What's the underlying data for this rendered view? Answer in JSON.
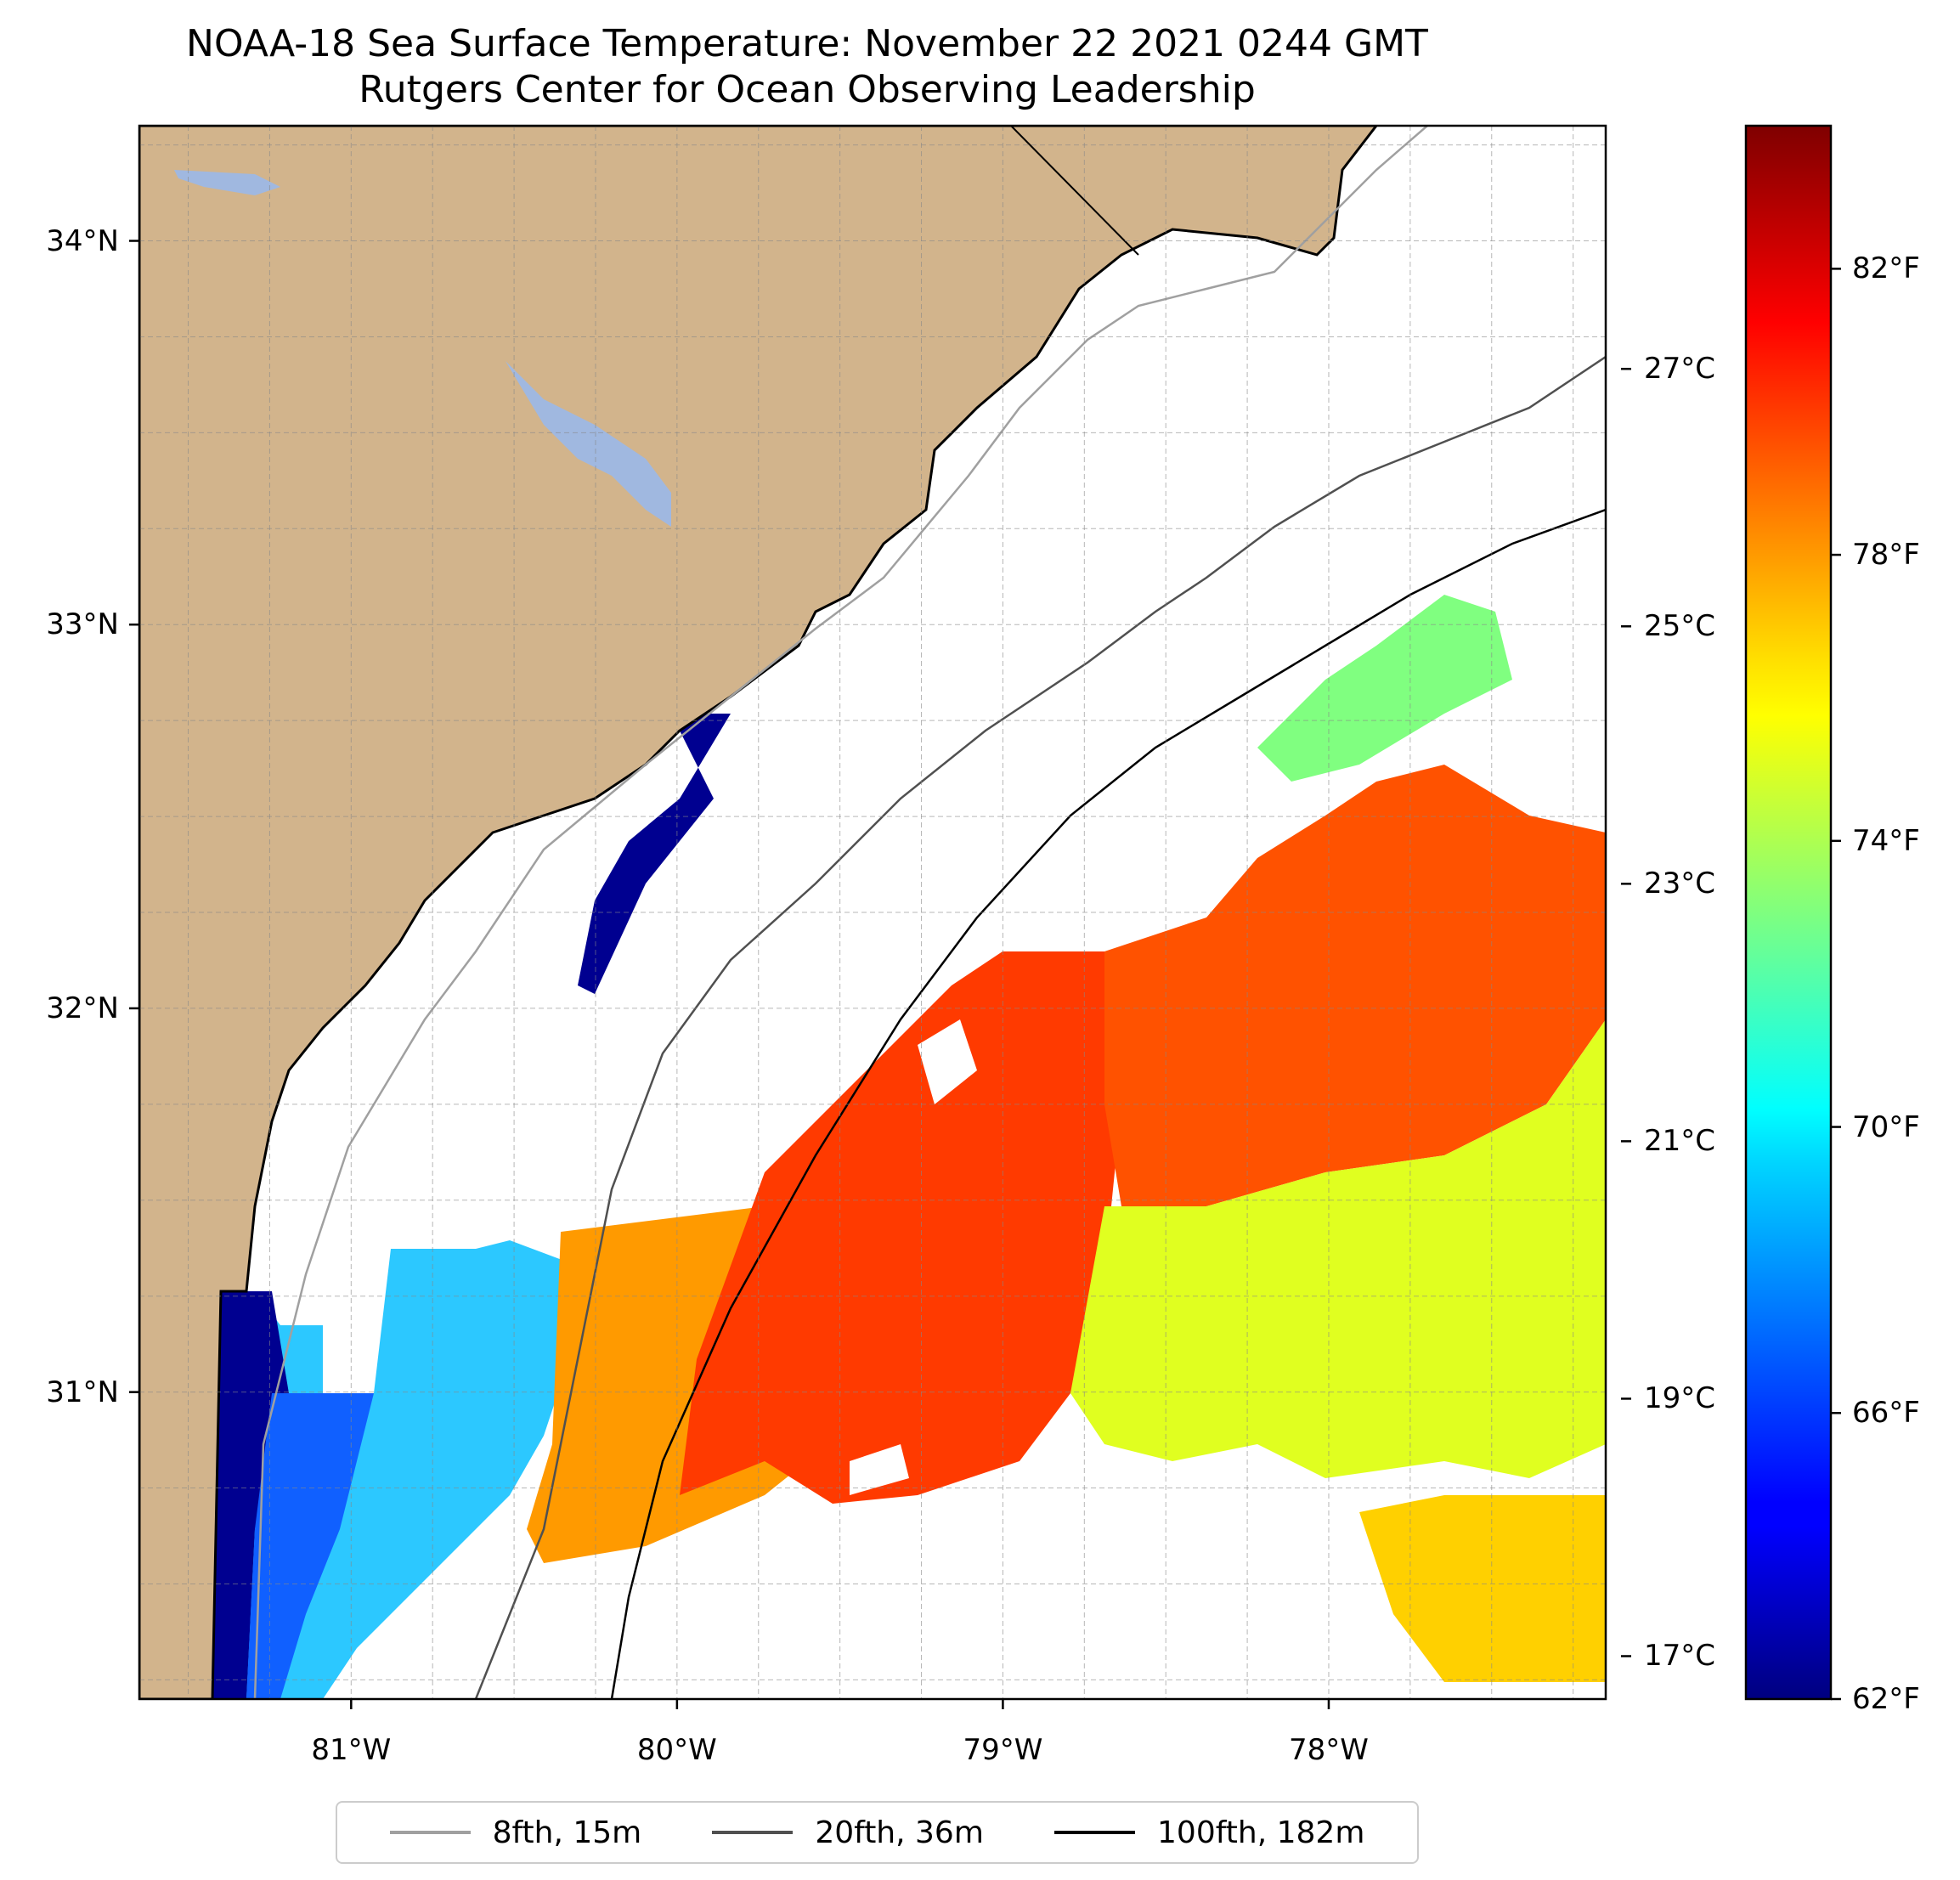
{
  "title": {
    "line1": "NOAA-18 Sea Surface Temperature: November 22 2021 0244 GMT",
    "line2": "Rutgers Center for Ocean Observing Leadership"
  },
  "map": {
    "lat_range": [
      30.2,
      34.3
    ],
    "lon_range": [
      -81.65,
      -77.15
    ],
    "lat_ticks": [
      {
        "value": 34,
        "label": "34°N"
      },
      {
        "value": 33,
        "label": "33°N"
      },
      {
        "value": 32,
        "label": "32°N"
      },
      {
        "value": 31,
        "label": "31°N"
      }
    ],
    "lon_ticks": [
      {
        "value": -81,
        "label": "81°W"
      },
      {
        "value": -80,
        "label": "80°W"
      },
      {
        "value": -79,
        "label": "79°W"
      },
      {
        "value": -78,
        "label": "78°W"
      }
    ],
    "gridlines": true,
    "colors": {
      "land": "#d2b48c",
      "water_body": "#a0b8e0",
      "ocean_nodata": "#ffffff",
      "contour_8fth": "#a0a0a0",
      "contour_20fth": "#505050",
      "contour_100fth": "#000000"
    }
  },
  "colorbar": {
    "colormap": "jet",
    "range_f": [
      62,
      84
    ],
    "f_ticks": [
      {
        "value": 82,
        "label": "82°F"
      },
      {
        "value": 78,
        "label": "78°F"
      },
      {
        "value": 74,
        "label": "74°F"
      },
      {
        "value": 70,
        "label": "70°F"
      },
      {
        "value": 66,
        "label": "66°F"
      },
      {
        "value": 62,
        "label": "62°F"
      }
    ],
    "c_ticks": [
      {
        "value": 27,
        "label": "27°C"
      },
      {
        "value": 25,
        "label": "25°C"
      },
      {
        "value": 23,
        "label": "23°C"
      },
      {
        "value": 21,
        "label": "21°C"
      },
      {
        "value": 19,
        "label": "19°C"
      },
      {
        "value": 17,
        "label": "17°C"
      }
    ]
  },
  "legend": {
    "items": [
      {
        "label": "8fth, 15m",
        "color": "#a0a0a0"
      },
      {
        "label": "20fth, 36m",
        "color": "#505050"
      },
      {
        "label": "100fth, 182m",
        "color": "#000000"
      }
    ]
  }
}
